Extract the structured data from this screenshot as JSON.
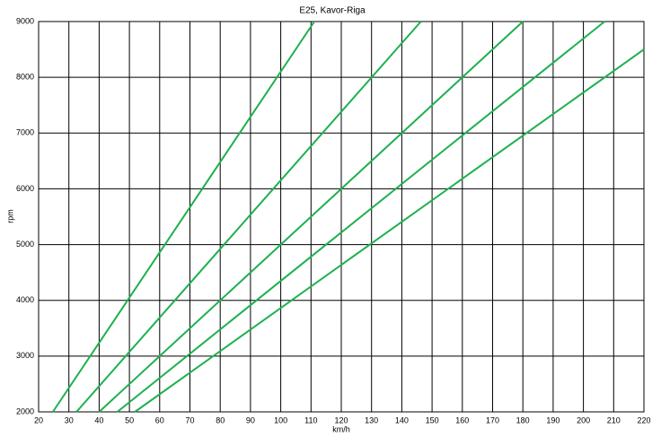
{
  "chart_data": {
    "type": "line",
    "title": "E25, Kavor-Riga",
    "x_label": "km/h",
    "y_label": "rpm",
    "series": [
      {
        "color": "#1db050",
        "x": [
          24.7,
          111.1
        ],
        "values": [
          2000,
          9000
        ]
      },
      {
        "color": "#1db050",
        "x": [
          32.5,
          146.3
        ],
        "values": [
          2000,
          9000
        ]
      },
      {
        "color": "#1db050",
        "x": [
          40,
          180
        ],
        "values": [
          2000,
          9000
        ]
      },
      {
        "color": "#1db050",
        "x": [
          46,
          207
        ],
        "values": [
          2000,
          9000
        ]
      },
      {
        "color": "#1db050",
        "x": [
          51.8,
          220
        ],
        "values": [
          2000,
          8500
        ]
      }
    ],
    "xlim": [
      20,
      220
    ],
    "xticks": [
      20,
      30,
      40,
      50,
      60,
      70,
      80,
      90,
      100,
      110,
      120,
      130,
      140,
      150,
      160,
      170,
      180,
      190,
      200,
      210,
      220
    ],
    "ylim": [
      2000,
      9000
    ],
    "yticks": [
      2000,
      3000,
      4000,
      5000,
      6000,
      7000,
      8000,
      9000
    ],
    "grid": true
  }
}
